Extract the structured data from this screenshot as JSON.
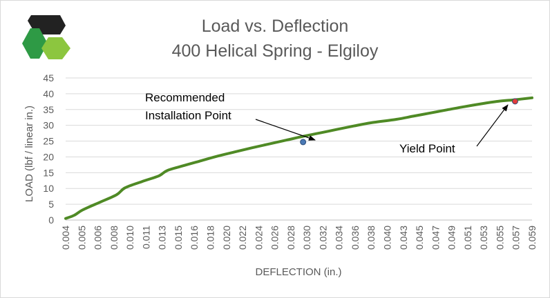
{
  "colors": {
    "line": "#4f8a25",
    "gridline": "#d9d9d9",
    "axis": "#bfbfbf",
    "text": "#595959",
    "recommended_marker": "#4a79b5",
    "yield_marker": "#e23b3b",
    "logo_dark": "#222222",
    "logo_green": "#2e9a45",
    "logo_lime": "#8cc63f"
  },
  "logo": {
    "icon": "hexagon-cluster-logo"
  },
  "chart_data": {
    "type": "line",
    "title": "Load vs. Deflection",
    "subtitle": "400 Helical Spring - Elgiloy",
    "xlabel": "DEFLECTION (in.)",
    "ylabel": "LOAD (lbf / linear in.)",
    "ylim": [
      0,
      45
    ],
    "yticks": [
      "0",
      "5",
      "10",
      "15",
      "20",
      "25",
      "30",
      "35",
      "40",
      "45"
    ],
    "categories": [
      "0.004",
      "0.005",
      "0.006",
      "0.008",
      "0.010",
      "0.011",
      "0.013",
      "0.015",
      "0.016",
      "0.018",
      "0.020",
      "0.022",
      "0.024",
      "0.026",
      "0.028",
      "0.030",
      "0.032",
      "0.034",
      "0.036",
      "0.038",
      "0.040",
      "0.043",
      "0.045",
      "0.047",
      "0.049",
      "0.051",
      "0.053",
      "0.055",
      "0.057",
      "0.059"
    ],
    "grid": "horizontal",
    "series": [
      {
        "x": [
          0.004,
          0.005,
          0.006,
          0.008,
          0.01,
          0.011,
          0.013,
          0.015,
          0.016,
          0.018,
          0.02,
          0.022,
          0.024,
          0.026,
          0.028,
          0.03,
          0.032,
          0.034,
          0.036,
          0.038,
          0.04,
          0.043,
          0.045,
          0.047,
          0.049,
          0.051,
          0.053,
          0.055,
          0.057,
          0.059
        ],
        "values": [
          0.5,
          1.5,
          3.2,
          5.6,
          8.0,
          10.2,
          12.2,
          14.0,
          15.7,
          17.3,
          18.8,
          20.3,
          21.6,
          22.9,
          24.1,
          25.3,
          26.5,
          27.6,
          28.7,
          29.8,
          30.8,
          31.9,
          32.9,
          33.9,
          34.9,
          35.9,
          36.8,
          37.6,
          38.1,
          38.7
        ]
      }
    ],
    "annotations": [
      {
        "label_lines": [
          "Recommended",
          "Installation Point"
        ],
        "x": 0.032,
        "y": 24.7,
        "marker_color": "#4a79b5"
      },
      {
        "label_lines": [
          "Yield Point"
        ],
        "x": 0.057,
        "y": 37.6,
        "marker_color": "#e23b3b"
      }
    ]
  }
}
